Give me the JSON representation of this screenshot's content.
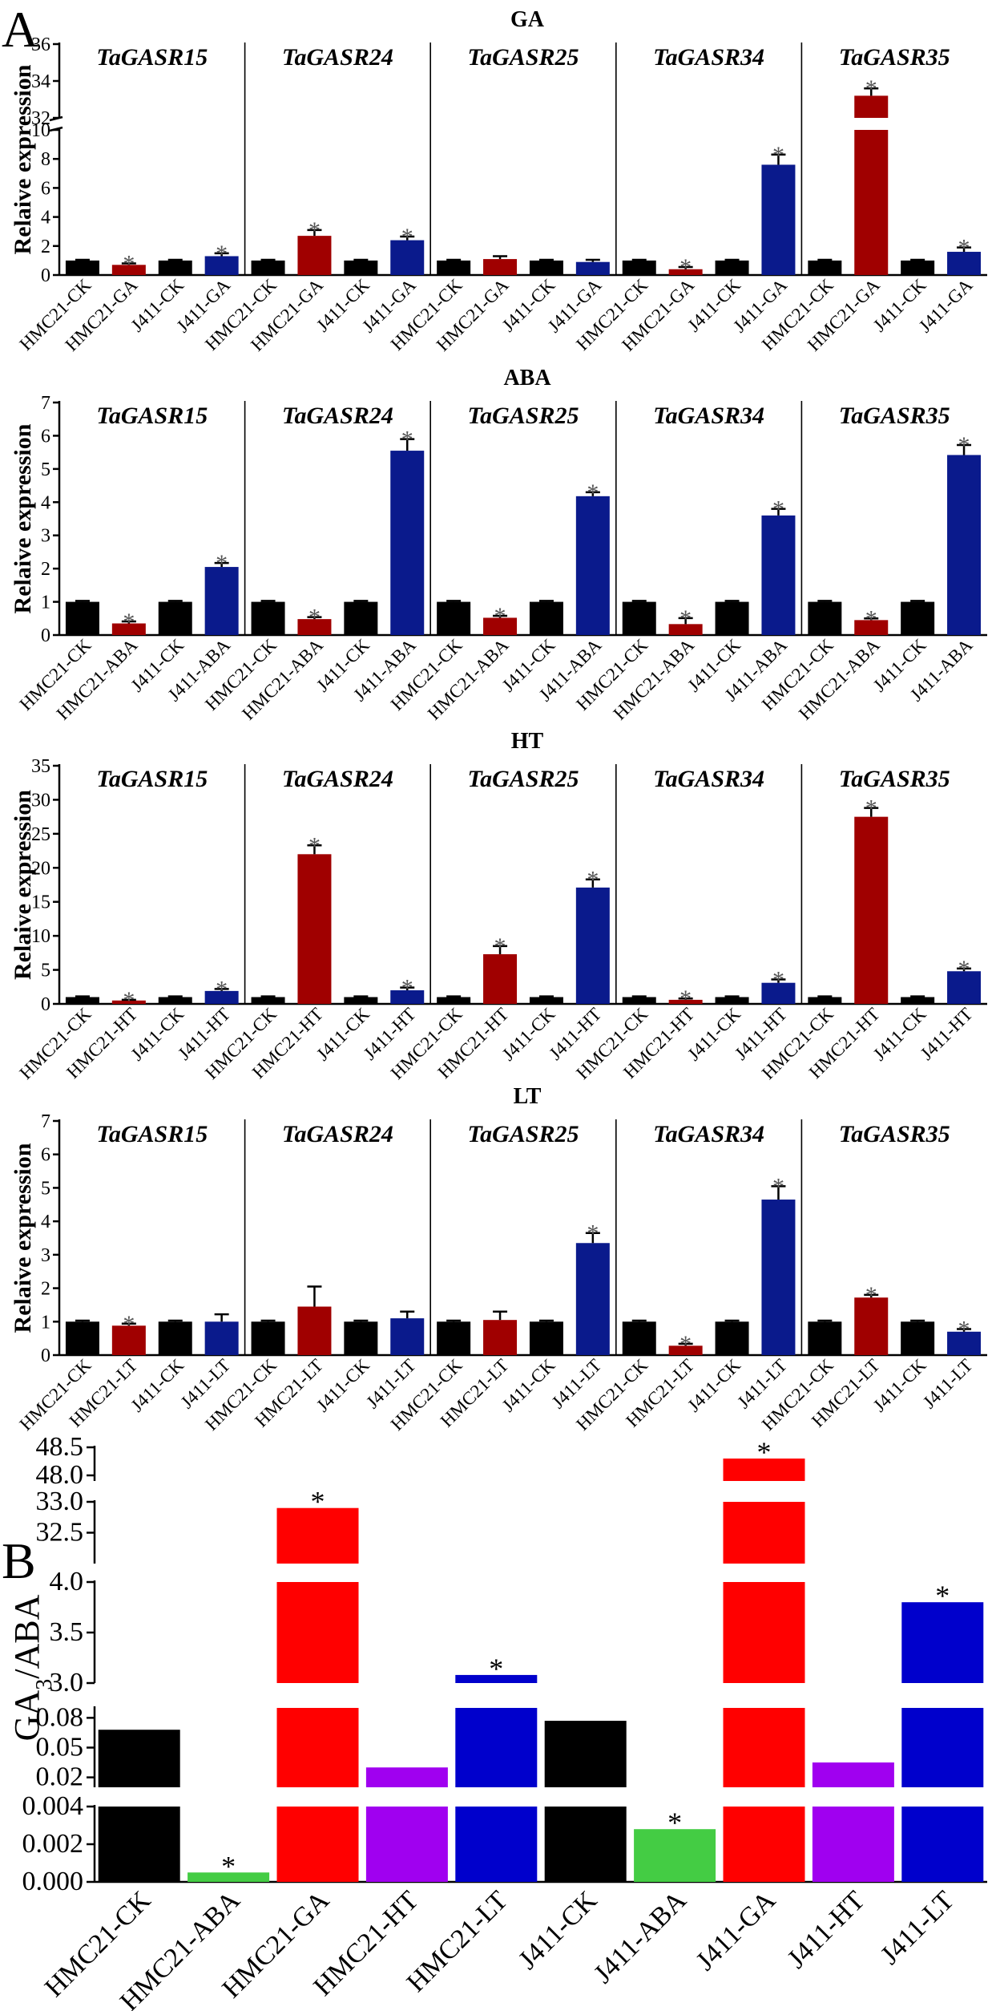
{
  "figure": {
    "panel_a_letter": "A",
    "panel_b_letter": "B",
    "colors": {
      "black": "#000000",
      "red": "#A00000",
      "blue": "#0A1A8C",
      "b_black": "#000000",
      "b_green": "#44CC44",
      "b_red": "#FF0000",
      "b_purple": "#A000F0",
      "b_blue": "#0000CC"
    }
  },
  "chart_data": [
    {
      "type": "bar",
      "panel": "A",
      "title": "GA",
      "ylabel": "Relaive expression",
      "axis": "broken",
      "segments": [
        {
          "range": [
            0,
            10
          ],
          "ticks": [
            0,
            2,
            4,
            6,
            8,
            10
          ]
        },
        {
          "range": [
            32,
            36
          ],
          "ticks": [
            32,
            34,
            36
          ]
        }
      ],
      "genes": [
        "TaGASR15",
        "TaGASR24",
        "TaGASR25",
        "TaGASR34",
        "TaGASR35"
      ],
      "categories": [
        "HMC21-CK",
        "HMC21-GA",
        "J411-CK",
        "J411-GA"
      ],
      "values": [
        [
          1,
          0.7,
          1,
          1.3
        ],
        [
          1,
          2.7,
          1,
          2.4
        ],
        [
          1,
          1.1,
          1,
          0.9
        ],
        [
          1,
          0.4,
          1,
          7.6
        ],
        [
          1,
          33.2,
          1,
          1.6
        ]
      ],
      "errors": [
        [
          0.05,
          0.1,
          0.05,
          0.2
        ],
        [
          0.05,
          0.4,
          0.05,
          0.25
        ],
        [
          0.05,
          0.2,
          0.05,
          0.15
        ],
        [
          0.05,
          0.15,
          0.05,
          0.7
        ],
        [
          0.05,
          0.4,
          0.05,
          0.3
        ]
      ],
      "significant": [
        [
          false,
          true,
          false,
          true
        ],
        [
          false,
          true,
          false,
          true
        ],
        [
          false,
          false,
          false,
          false
        ],
        [
          false,
          true,
          false,
          true
        ],
        [
          false,
          true,
          false,
          true
        ]
      ]
    },
    {
      "type": "bar",
      "panel": "A",
      "title": "ABA",
      "ylabel": "Relaive expression",
      "axis": "linear",
      "ylim": [
        0,
        7
      ],
      "ticks": [
        0,
        1,
        2,
        3,
        4,
        5,
        6,
        7
      ],
      "genes": [
        "TaGASR15",
        "TaGASR24",
        "TaGASR25",
        "TaGASR34",
        "TaGASR35"
      ],
      "categories": [
        "HMC21-CK",
        "HMC21-ABA",
        "J411-CK",
        "J411-ABA"
      ],
      "values": [
        [
          1,
          0.35,
          1,
          2.05
        ],
        [
          1,
          0.48,
          1,
          5.55
        ],
        [
          1,
          0.52,
          1,
          4.18
        ],
        [
          1,
          0.33,
          1,
          3.6
        ],
        [
          1,
          0.45,
          1,
          5.42
        ]
      ],
      "errors": [
        [
          0.03,
          0.06,
          0.03,
          0.12
        ],
        [
          0.03,
          0.06,
          0.03,
          0.35
        ],
        [
          0.03,
          0.06,
          0.03,
          0.12
        ],
        [
          0.03,
          0.18,
          0.03,
          0.2
        ],
        [
          0.03,
          0.05,
          0.03,
          0.3
        ]
      ],
      "significant": [
        [
          false,
          true,
          false,
          true
        ],
        [
          false,
          true,
          false,
          true
        ],
        [
          false,
          true,
          false,
          true
        ],
        [
          false,
          true,
          false,
          true
        ],
        [
          false,
          true,
          false,
          true
        ]
      ]
    },
    {
      "type": "bar",
      "panel": "A",
      "title": "HT",
      "ylabel": "Relaive expression",
      "axis": "linear",
      "ylim": [
        0,
        35
      ],
      "ticks": [
        0,
        5,
        10,
        15,
        20,
        25,
        30,
        35
      ],
      "genes": [
        "TaGASR15",
        "TaGASR24",
        "TaGASR25",
        "TaGASR34",
        "TaGASR35"
      ],
      "categories": [
        "HMC21-CK",
        "HMC21-HT",
        "J411-CK",
        "J411-HT"
      ],
      "values": [
        [
          1,
          0.5,
          1,
          1.9
        ],
        [
          1,
          22,
          1,
          2.0
        ],
        [
          1,
          7.3,
          1,
          17.1
        ],
        [
          1,
          0.6,
          1,
          3.1
        ],
        [
          1,
          27.5,
          1,
          4.8
        ]
      ],
      "errors": [
        [
          0.1,
          0.1,
          0.1,
          0.3
        ],
        [
          0.1,
          1.3,
          0.1,
          0.4
        ],
        [
          0.1,
          1.2,
          0.1,
          1.2
        ],
        [
          0.1,
          0.2,
          0.1,
          0.5
        ],
        [
          0.1,
          1.3,
          0.1,
          0.4
        ]
      ],
      "significant": [
        [
          false,
          true,
          false,
          true
        ],
        [
          false,
          true,
          false,
          true
        ],
        [
          false,
          true,
          false,
          true
        ],
        [
          false,
          true,
          false,
          true
        ],
        [
          false,
          true,
          false,
          true
        ]
      ]
    },
    {
      "type": "bar",
      "panel": "A",
      "title": "LT",
      "ylabel": "Relaive expression",
      "axis": "linear",
      "ylim": [
        0,
        7
      ],
      "ticks": [
        0,
        1,
        2,
        3,
        4,
        5,
        6,
        7
      ],
      "genes": [
        "TaGASR15",
        "TaGASR24",
        "TaGASR25",
        "TaGASR34",
        "TaGASR35"
      ],
      "categories": [
        "HMC21-CK",
        "HMC21-LT",
        "J411-CK",
        "J411-LT"
      ],
      "values": [
        [
          1,
          0.88,
          1,
          1.0
        ],
        [
          1,
          1.45,
          1,
          1.1
        ],
        [
          1,
          1.05,
          1,
          3.35
        ],
        [
          1,
          0.28,
          1,
          4.65
        ],
        [
          1,
          1.72,
          1,
          0.7
        ]
      ],
      "errors": [
        [
          0.03,
          0.06,
          0.03,
          0.22
        ],
        [
          0.03,
          0.6,
          0.03,
          0.2
        ],
        [
          0.03,
          0.25,
          0.03,
          0.3
        ],
        [
          0.03,
          0.06,
          0.03,
          0.4
        ],
        [
          0.03,
          0.08,
          0.03,
          0.08
        ]
      ],
      "significant": [
        [
          false,
          true,
          false,
          false
        ],
        [
          false,
          false,
          false,
          false
        ],
        [
          false,
          false,
          false,
          true
        ],
        [
          false,
          true,
          false,
          true
        ],
        [
          false,
          true,
          false,
          true
        ]
      ]
    },
    {
      "type": "bar",
      "panel": "B",
      "ylabel": "GA3/ABA",
      "ylabel_main": "GA",
      "ylabel_sub": "3",
      "ylabel_tail": "/ABA",
      "axis": "broken",
      "segments": [
        {
          "range": [
            0,
            0.004
          ],
          "ticks": [
            0.0,
            0.002,
            0.004
          ],
          "tick_labels": [
            "0.000",
            "0.002",
            "0.004"
          ]
        },
        {
          "range": [
            0.01,
            0.09
          ],
          "ticks": [
            0.02,
            0.05,
            0.08
          ],
          "tick_labels": [
            "0.02",
            "0.05",
            "0.08"
          ]
        },
        {
          "range": [
            3.0,
            4.0
          ],
          "ticks": [
            3.0,
            3.5,
            4.0
          ],
          "tick_labels": [
            "3.0",
            "3.5",
            "4.0"
          ]
        },
        {
          "range": [
            32.0,
            33.0
          ],
          "ticks": [
            32.5,
            33.0
          ],
          "tick_labels": [
            "32.5",
            "33.0"
          ]
        },
        {
          "range": [
            47.9,
            48.5
          ],
          "ticks": [
            48.0,
            48.5
          ],
          "tick_labels": [
            "48.0",
            "48.5"
          ]
        }
      ],
      "categories": [
        "HMC21-CK",
        "HMC21-ABA",
        "HMC21-GA",
        "HMC21-HT",
        "HMC21-LT",
        "J411-CK",
        "J411-ABA",
        "J411-GA",
        "J411-HT",
        "J411-LT"
      ],
      "values": [
        0.068,
        0.0005,
        32.9,
        0.03,
        3.08,
        0.077,
        0.0028,
        48.3,
        0.035,
        3.8
      ],
      "colors": [
        "b_black",
        "b_green",
        "b_red",
        "b_purple",
        "b_blue",
        "b_black",
        "b_green",
        "b_red",
        "b_purple",
        "b_blue"
      ],
      "significant": [
        false,
        true,
        true,
        false,
        true,
        false,
        true,
        true,
        false,
        true
      ]
    }
  ]
}
